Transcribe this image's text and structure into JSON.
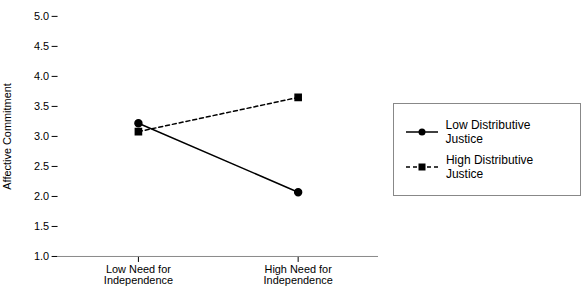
{
  "chart_data": {
    "type": "line",
    "categories": [
      "Low Need for\nIndependence",
      "High Need for\nIndependence"
    ],
    "series": [
      {
        "name": "Low Distributive Justice",
        "color": "#000000",
        "values": [
          3.22,
          2.07
        ],
        "marker": "circle",
        "line_style": "solid"
      },
      {
        "name": "High Distributive\nJustice",
        "color": "#000000",
        "values": [
          3.08,
          3.65
        ],
        "marker": "square",
        "line_style": "dashed"
      }
    ],
    "ylabel": "Affective Commitment",
    "ylim": [
      1,
      5
    ],
    "yticks": [
      {
        "value": 1,
        "label": "1.0"
      },
      1.5,
      {
        "value": 2,
        "label": "2.0"
      },
      2.5,
      {
        "value": 3,
        "label": "3.0"
      },
      3.5,
      {
        "value": 4,
        "label": "4.0"
      },
      4.5,
      {
        "value": 5,
        "label": "5.0"
      }
    ],
    "grid": false,
    "legend": "right"
  }
}
